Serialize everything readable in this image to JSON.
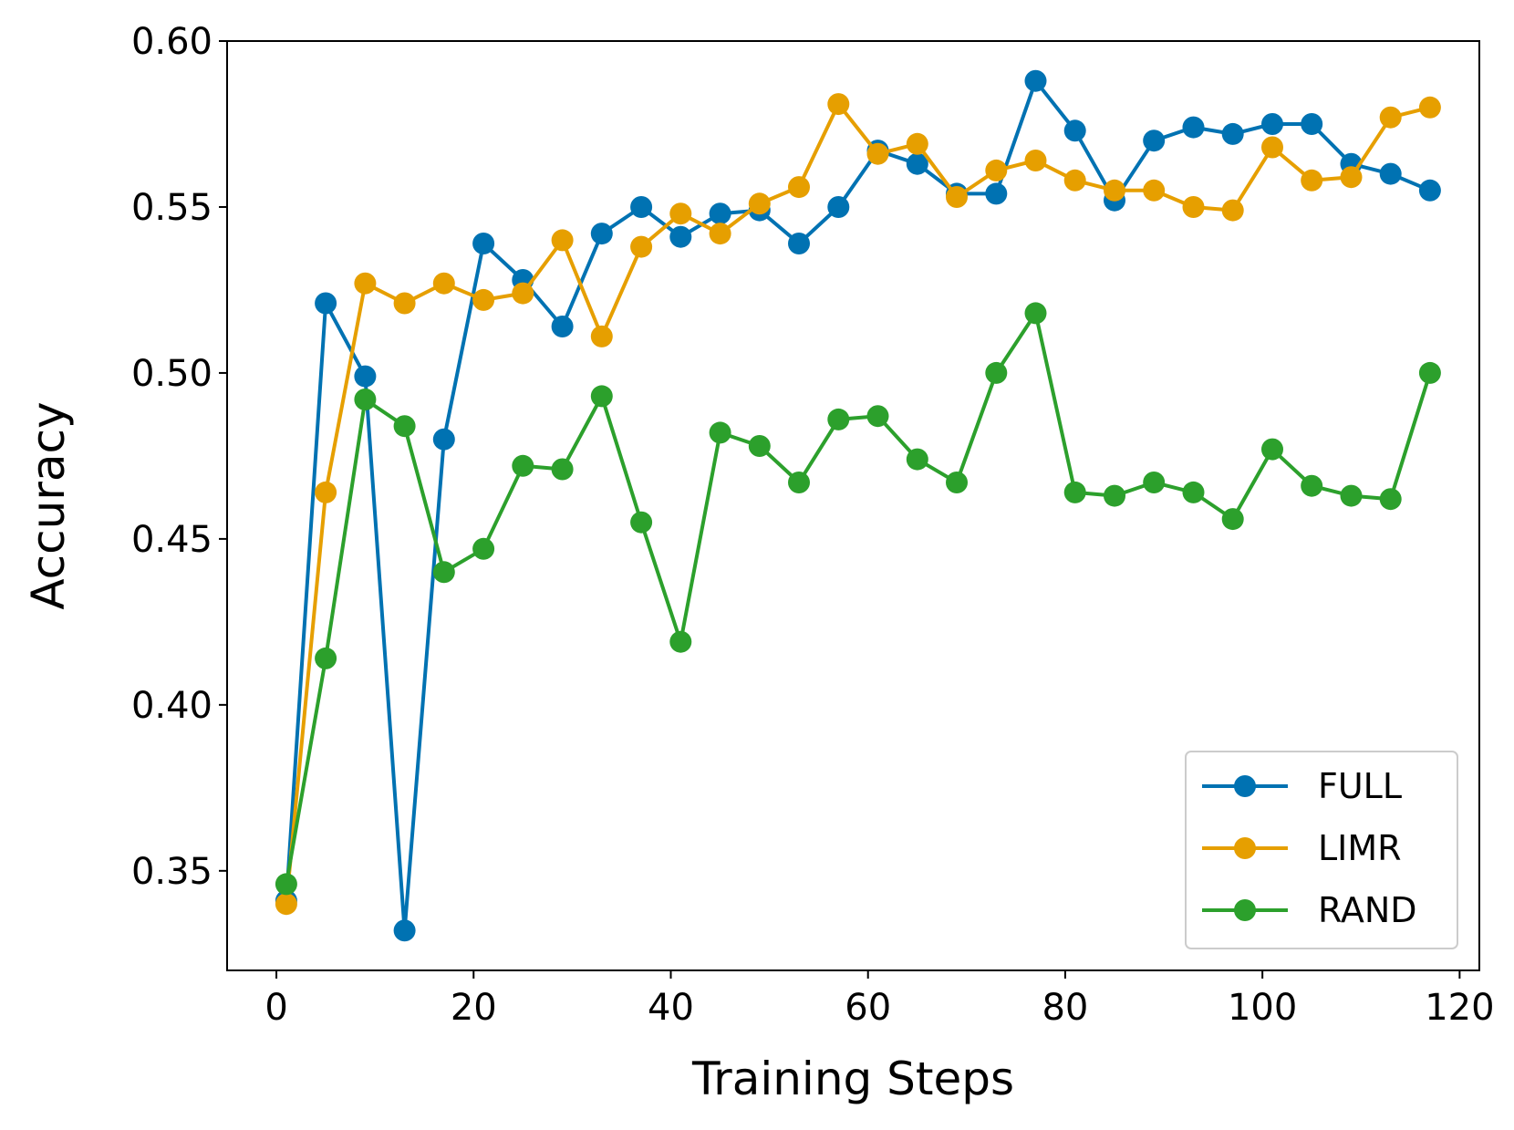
{
  "chart_data": {
    "type": "line",
    "title": "",
    "xlabel": "Training Steps",
    "ylabel": "Accuracy",
    "xlim": [
      -5,
      122
    ],
    "ylim": [
      0.32,
      0.6
    ],
    "xticks": [
      0,
      20,
      40,
      60,
      80,
      100,
      120
    ],
    "yticks": [
      0.35,
      0.4,
      0.45,
      0.5,
      0.55,
      0.6
    ],
    "xtick_labels": [
      "0",
      "20",
      "40",
      "60",
      "80",
      "100",
      "120"
    ],
    "ytick_labels": [
      "0.35",
      "0.40",
      "0.45",
      "0.50",
      "0.55",
      "0.60"
    ],
    "grid": false,
    "legend_position": "lower-right",
    "x": [
      1,
      5,
      9,
      13,
      17,
      21,
      25,
      29,
      33,
      37,
      41,
      45,
      49,
      53,
      57,
      61,
      65,
      69,
      73,
      77,
      81,
      85,
      89,
      93,
      97,
      101,
      105,
      109,
      113,
      117
    ],
    "series": [
      {
        "name": "FULL",
        "color": "#0072b2",
        "values": [
          0.341,
          0.521,
          0.499,
          0.332,
          0.48,
          0.539,
          0.528,
          0.514,
          0.542,
          0.55,
          0.541,
          0.548,
          0.549,
          0.539,
          0.55,
          0.567,
          0.563,
          0.554,
          0.554,
          0.588,
          0.573,
          0.552,
          0.57,
          0.574,
          0.572,
          0.575,
          0.575,
          0.563,
          0.56,
          0.555
        ]
      },
      {
        "name": "LIMR",
        "color": "#e69f00",
        "values": [
          0.34,
          0.464,
          0.527,
          0.521,
          0.527,
          0.522,
          0.524,
          0.54,
          0.511,
          0.538,
          0.548,
          0.542,
          0.551,
          0.556,
          0.581,
          0.566,
          0.569,
          0.553,
          0.561,
          0.564,
          0.558,
          0.555,
          0.555,
          0.55,
          0.549,
          0.568,
          0.558,
          0.559,
          0.577,
          0.58
        ]
      },
      {
        "name": "RAND",
        "color": "#2ca02c",
        "values": [
          0.346,
          0.414,
          0.492,
          0.484,
          0.44,
          0.447,
          0.472,
          0.471,
          0.493,
          0.455,
          0.419,
          0.482,
          0.478,
          0.467,
          0.486,
          0.487,
          0.474,
          0.467,
          0.5,
          0.518,
          0.464,
          0.463,
          0.467,
          0.464,
          0.456,
          0.477,
          0.466,
          0.463,
          0.462,
          0.5
        ]
      }
    ]
  }
}
